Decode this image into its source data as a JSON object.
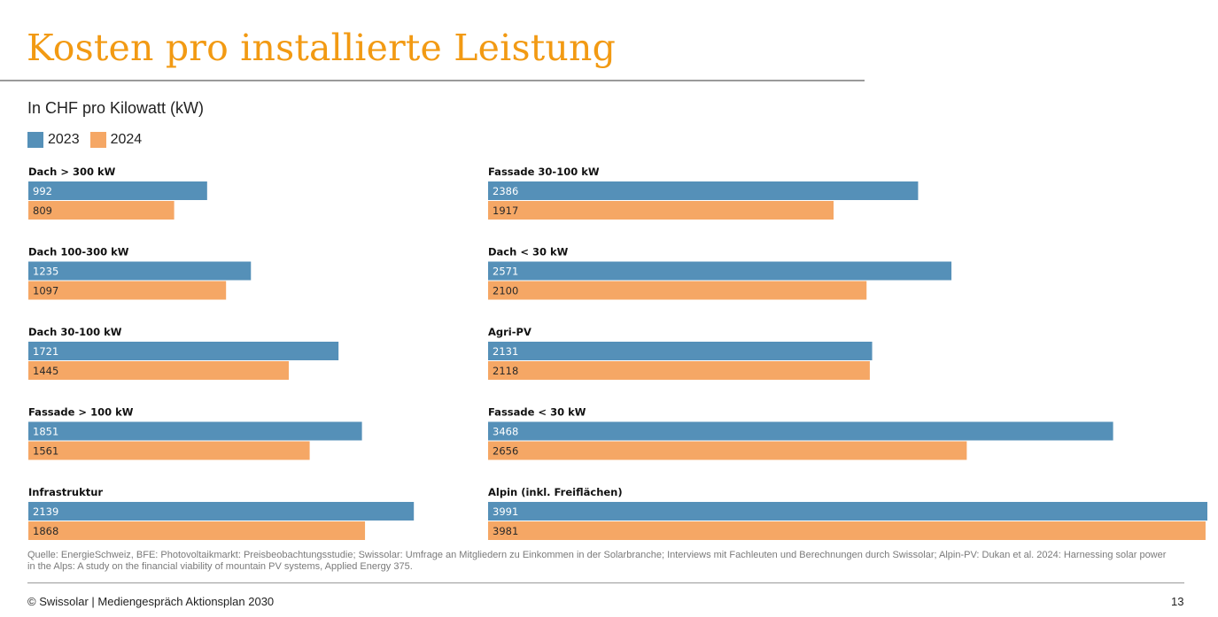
{
  "title": "Kosten pro installierte Leistung",
  "colors": {
    "title": "#f29a13",
    "series_2023": "#5590b8",
    "series_2024": "#f5a765"
  },
  "chart_data": {
    "type": "bar",
    "orientation": "horizontal",
    "subtitle": "In CHF pro Kilowatt (kW)",
    "series_names": [
      "2023",
      "2024"
    ],
    "xlim": [
      0,
      3991
    ],
    "panels": [
      {
        "position": "left",
        "categories": [
          {
            "name": "Dach > 300 kW",
            "values": [
              992,
              809
            ]
          },
          {
            "name": "Dach 100-300 kW",
            "values": [
              1235,
              1097
            ]
          },
          {
            "name": "Dach 30-100 kW",
            "values": [
              1721,
              1445
            ]
          },
          {
            "name": "Fassade > 100 kW",
            "values": [
              1851,
              1561
            ]
          },
          {
            "name": "Infrastruktur",
            "values": [
              2139,
              1868
            ]
          }
        ]
      },
      {
        "position": "right",
        "categories": [
          {
            "name": "Fassade 30-100 kW",
            "values": [
              2386,
              1917
            ]
          },
          {
            "name": "Dach < 30 kW",
            "values": [
              2571,
              2100
            ]
          },
          {
            "name": "Agri-PV",
            "values": [
              2131,
              2118
            ]
          },
          {
            "name": "Fassade < 30 kW",
            "values": [
              3468,
              2656
            ]
          },
          {
            "name": "Alpin (inkl. Freiflächen)",
            "values": [
              3991,
              3981
            ]
          }
        ]
      }
    ]
  },
  "source": "Quelle: EnergieSchweiz, BFE: Photovoltaikmarkt: Preisbeobachtungsstudie; Swissolar: Umfrage an Mitgliedern zu Einkommen in der Solarbranche; Interviews mit Fachleuten und Berechnungen durch Swissolar; Alpin-PV: Dukan et al. 2024: Harnessing solar power in the Alps: A study on the financial viability of mountain PV systems, Applied Energy 375.",
  "footer": {
    "left": "© Swissolar | Mediengespräch Aktionsplan 2030",
    "page_number": "13"
  }
}
